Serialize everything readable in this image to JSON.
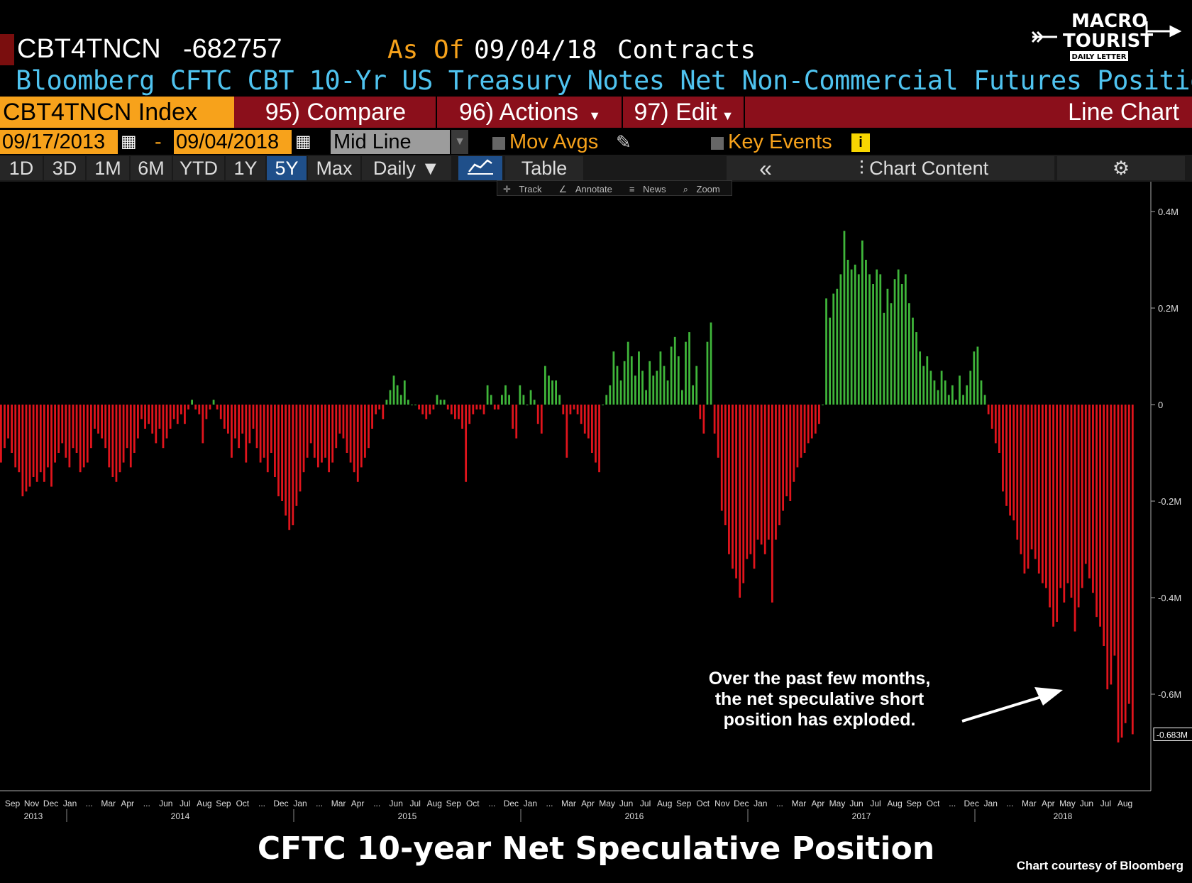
{
  "header": {
    "ticker": "CBT4TNCN",
    "value": "-682757",
    "asof_label": "As Of",
    "asof_date": "09/04/18",
    "units": "Contracts",
    "description": "Bloomberg CFTC CBT 10-Yr US Treasury Notes Net Non-Commercial Futures Positions"
  },
  "menu": {
    "index_label": "CBT4TNCN Index",
    "compare": "95) Compare",
    "actions": "96) Actions",
    "edit": "97) Edit",
    "chart_type": "Line Chart"
  },
  "controls": {
    "start_date": "09/17/2013",
    "dash": "-",
    "end_date": "09/04/2018",
    "style": "Mid Line",
    "mov_avgs": "Mov Avgs",
    "key_events": "Key Events"
  },
  "ranges": [
    "1D",
    "3D",
    "1M",
    "6M",
    "YTD",
    "1Y",
    "5Y",
    "Max"
  ],
  "active_range": "5Y",
  "frequency": "Daily",
  "tabs": {
    "table": "Table",
    "chart_content": "Chart Content"
  },
  "toolbar": [
    "Track",
    "Annotate",
    "News",
    "Zoom"
  ],
  "logo": {
    "line1": "MACRO",
    "line2": "TOURIST",
    "line3": "DAILY LETTER"
  },
  "annotation": "Over the past few months, the net speculative short position has exploded.",
  "footer_title": "CFTC 10-year Net Speculative Position",
  "credit": "Chart courtesy of Bloomberg",
  "colors": {
    "positive": "#3fb53a",
    "negative": "#e0141c",
    "accent": "#f7a21b",
    "desc": "#4fc3ef",
    "menu_bg": "#8b0f1b"
  },
  "chart_data": {
    "type": "bar",
    "units": "contracts (millions)",
    "ylim": [
      -0.8,
      0.45
    ],
    "yticks": [
      {
        "value": 0.4,
        "label": "0.4M"
      },
      {
        "value": 0.2,
        "label": "0.2M"
      },
      {
        "value": 0,
        "label": "0"
      },
      {
        "value": -0.2,
        "label": "-0.2M"
      },
      {
        "value": -0.4,
        "label": "-0.4M"
      },
      {
        "value": -0.6,
        "label": "-0.6M"
      }
    ],
    "last_value_label": "-0.683M",
    "last_value": -0.683,
    "month_labels": [
      "Sep",
      "Nov",
      "Dec",
      "Jan",
      "...",
      "Mar",
      "Apr",
      "...",
      "Jun",
      "Jul",
      "Aug",
      "Sep",
      "Oct",
      "...",
      "Dec",
      "Jan",
      "...",
      "Mar",
      "Apr",
      "...",
      "Jun",
      "Jul",
      "Aug",
      "Sep",
      "Oct",
      "...",
      "Dec",
      "Jan",
      "...",
      "Mar",
      "Apr",
      "May",
      "Jun",
      "Jul",
      "Aug",
      "Sep",
      "Oct",
      "Nov",
      "Dec",
      "Jan",
      "...",
      "Mar",
      "Apr",
      "May",
      "Jun",
      "Jul",
      "Aug",
      "Sep",
      "Oct",
      "...",
      "Dec",
      "Jan",
      "...",
      "Mar",
      "Apr",
      "May",
      "Jun",
      "Jul",
      "Aug"
    ],
    "year_labels": [
      "2013",
      "2014",
      "2015",
      "2016",
      "2017",
      "2018"
    ],
    "values": [
      -0.12,
      -0.09,
      -0.07,
      -0.1,
      -0.13,
      -0.14,
      -0.19,
      -0.18,
      -0.17,
      -0.15,
      -0.16,
      -0.14,
      -0.16,
      -0.13,
      -0.17,
      -0.12,
      -0.1,
      -0.08,
      -0.11,
      -0.13,
      -0.09,
      -0.1,
      -0.14,
      -0.13,
      -0.12,
      -0.09,
      -0.05,
      -0.06,
      -0.07,
      -0.09,
      -0.13,
      -0.15,
      -0.16,
      -0.14,
      -0.12,
      -0.09,
      -0.13,
      -0.1,
      -0.07,
      -0.03,
      -0.05,
      -0.04,
      -0.06,
      -0.08,
      -0.05,
      -0.09,
      -0.07,
      -0.05,
      -0.03,
      -0.04,
      -0.02,
      -0.04,
      -0.01,
      0.01,
      -0.01,
      -0.02,
      -0.08,
      -0.03,
      -0.01,
      0.01,
      -0.01,
      -0.03,
      -0.05,
      -0.06,
      -0.11,
      -0.07,
      -0.09,
      -0.06,
      -0.12,
      -0.08,
      -0.05,
      -0.09,
      -0.12,
      -0.11,
      -0.14,
      -0.1,
      -0.15,
      -0.19,
      -0.2,
      -0.23,
      -0.26,
      -0.25,
      -0.21,
      -0.18,
      -0.14,
      -0.11,
      -0.08,
      -0.11,
      -0.13,
      -0.12,
      -0.11,
      -0.14,
      -0.12,
      -0.09,
      -0.06,
      -0.07,
      -0.1,
      -0.12,
      -0.14,
      -0.16,
      -0.13,
      -0.11,
      -0.09,
      -0.05,
      -0.02,
      -0.01,
      -0.03,
      0.01,
      0.03,
      0.06,
      0.04,
      0.02,
      0.05,
      0.01,
      0.0,
      0.0,
      -0.01,
      -0.02,
      -0.03,
      -0.02,
      -0.01,
      0.02,
      0.01,
      0.01,
      -0.01,
      -0.02,
      -0.03,
      -0.03,
      -0.05,
      -0.16,
      -0.04,
      -0.02,
      -0.01,
      -0.01,
      -0.02,
      0.04,
      0.02,
      -0.01,
      -0.01,
      0.02,
      0.04,
      0.02,
      -0.05,
      -0.07,
      0.04,
      0.02,
      0.0,
      0.03,
      0.01,
      -0.04,
      -0.06,
      0.08,
      0.06,
      0.05,
      0.05,
      0.02,
      -0.02,
      -0.11,
      -0.02,
      -0.01,
      -0.02,
      -0.04,
      -0.06,
      -0.07,
      -0.1,
      -0.12,
      -0.14,
      0.0,
      0.02,
      0.04,
      0.11,
      0.08,
      0.05,
      0.09,
      0.13,
      0.1,
      0.06,
      0.11,
      0.07,
      0.03,
      0.09,
      0.06,
      0.07,
      0.11,
      0.08,
      0.05,
      0.12,
      0.14,
      0.1,
      0.03,
      0.13,
      0.15,
      0.04,
      0.08,
      -0.03,
      -0.06,
      0.13,
      0.17,
      -0.06,
      -0.11,
      -0.22,
      -0.25,
      -0.31,
      -0.34,
      -0.36,
      -0.4,
      -0.37,
      -0.32,
      -0.31,
      -0.34,
      -0.28,
      -0.29,
      -0.31,
      -0.28,
      -0.41,
      -0.28,
      -0.25,
      -0.22,
      -0.19,
      -0.2,
      -0.16,
      -0.13,
      -0.11,
      -0.1,
      -0.08,
      -0.07,
      -0.06,
      -0.04,
      0.0,
      0.22,
      0.18,
      0.23,
      0.24,
      0.27,
      0.36,
      0.3,
      0.28,
      0.29,
      0.27,
      0.34,
      0.3,
      0.27,
      0.25,
      0.28,
      0.27,
      0.19,
      0.24,
      0.21,
      0.26,
      0.28,
      0.25,
      0.27,
      0.21,
      0.18,
      0.15,
      0.11,
      0.08,
      0.1,
      0.07,
      0.05,
      0.03,
      0.07,
      0.05,
      0.02,
      0.04,
      0.01,
      0.06,
      0.02,
      0.04,
      0.07,
      0.11,
      0.12,
      0.05,
      0.02,
      -0.02,
      -0.05,
      -0.08,
      -0.1,
      -0.18,
      -0.21,
      -0.23,
      -0.24,
      -0.28,
      -0.31,
      -0.35,
      -0.34,
      -0.3,
      -0.32,
      -0.35,
      -0.37,
      -0.38,
      -0.42,
      -0.46,
      -0.45,
      -0.38,
      -0.41,
      -0.37,
      -0.4,
      -0.47,
      -0.42,
      -0.38,
      -0.33,
      -0.36,
      -0.39,
      -0.44,
      -0.46,
      -0.5,
      -0.59,
      -0.58,
      -0.52,
      -0.7,
      -0.69,
      -0.66,
      -0.62,
      -0.683
    ]
  }
}
